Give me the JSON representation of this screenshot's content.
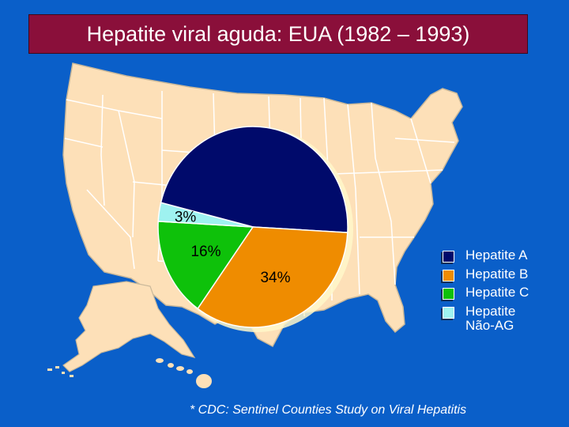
{
  "title": "Hepatite viral aguda: EUA (1982 – 1993)",
  "footnote": "* CDC: Sentinel Counties Study on Viral Hepatitis",
  "colors": {
    "background": "#0a5fc9",
    "title_bar": "#8a0f3a",
    "map_fill": "#fde0b8",
    "map_border": "#ffffff"
  },
  "chart_data": {
    "type": "pie",
    "title": "Hepatite viral aguda: EUA (1982 – 1993)",
    "slices": [
      {
        "name": "Hepatite A",
        "value": 47,
        "label": "",
        "color": "#000a6b"
      },
      {
        "name": "Hepatite B",
        "value": 34,
        "label": "34%",
        "color": "#ef8c00"
      },
      {
        "name": "Hepatite C",
        "value": 16,
        "label": "16%",
        "color": "#0ec10a"
      },
      {
        "name": "Hepatite Não-AG",
        "value": 3,
        "label": "3%",
        "color": "#9ef2f0"
      }
    ],
    "legend": {
      "position": "right",
      "items": [
        {
          "lines": [
            "Hepatite A"
          ],
          "color": "#000a6b"
        },
        {
          "lines": [
            "Hepatite B"
          ],
          "color": "#ef8c00"
        },
        {
          "lines": [
            "Hepatite C"
          ],
          "color": "#0ec10a"
        },
        {
          "lines": [
            "Hepatite",
            "Não-AG"
          ],
          "color": "#9ef2f0"
        }
      ]
    }
  }
}
